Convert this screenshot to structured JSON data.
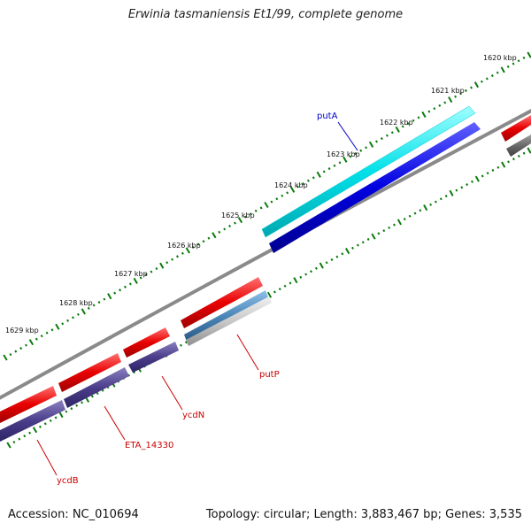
{
  "title": "Erwinia tasmaniensis Et1/99, complete genome",
  "footer": {
    "accession": "Accession: NC_010694",
    "topology": "Topology: circular; Length: 3,883,467 bp; Genes: 3,535"
  },
  "ticks": [
    "1620 kbp",
    "1621 kbp",
    "1622 kbp",
    "1623 kbp",
    "1624 kbp",
    "1625 kbp",
    "1626 kbp",
    "1627 kbp",
    "1628 kbp",
    "1629 kbp"
  ],
  "genes": [
    {
      "name": "putA",
      "color": "#0000cc"
    },
    {
      "name": "putP",
      "color": "#cc0000"
    },
    {
      "name": "ycdN",
      "color": "#cc0000"
    },
    {
      "name": "ETA_14330",
      "color": "#cc0000"
    },
    {
      "name": "ycdB",
      "color": "#cc0000"
    }
  ],
  "colors": {
    "forward_cds": "#e80000",
    "reverse_cds": "#4b3d8a",
    "putA_outer": "#00e0e8",
    "putA_inner": "#0000e0",
    "putP_inner": "#4a86b8",
    "backbone": "#8a8a8a",
    "tick": "#0a7a0a"
  }
}
